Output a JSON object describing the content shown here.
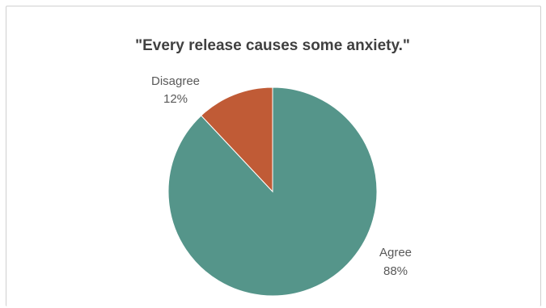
{
  "chart_data": {
    "type": "pie",
    "title": "\"Every release causes some anxiety.\"",
    "categories": [
      "Agree",
      "Disagree"
    ],
    "values": [
      88,
      12
    ],
    "value_labels": [
      "88%",
      "12%"
    ],
    "colors": [
      "#55958a",
      "#c05b36"
    ],
    "legend": "none"
  }
}
